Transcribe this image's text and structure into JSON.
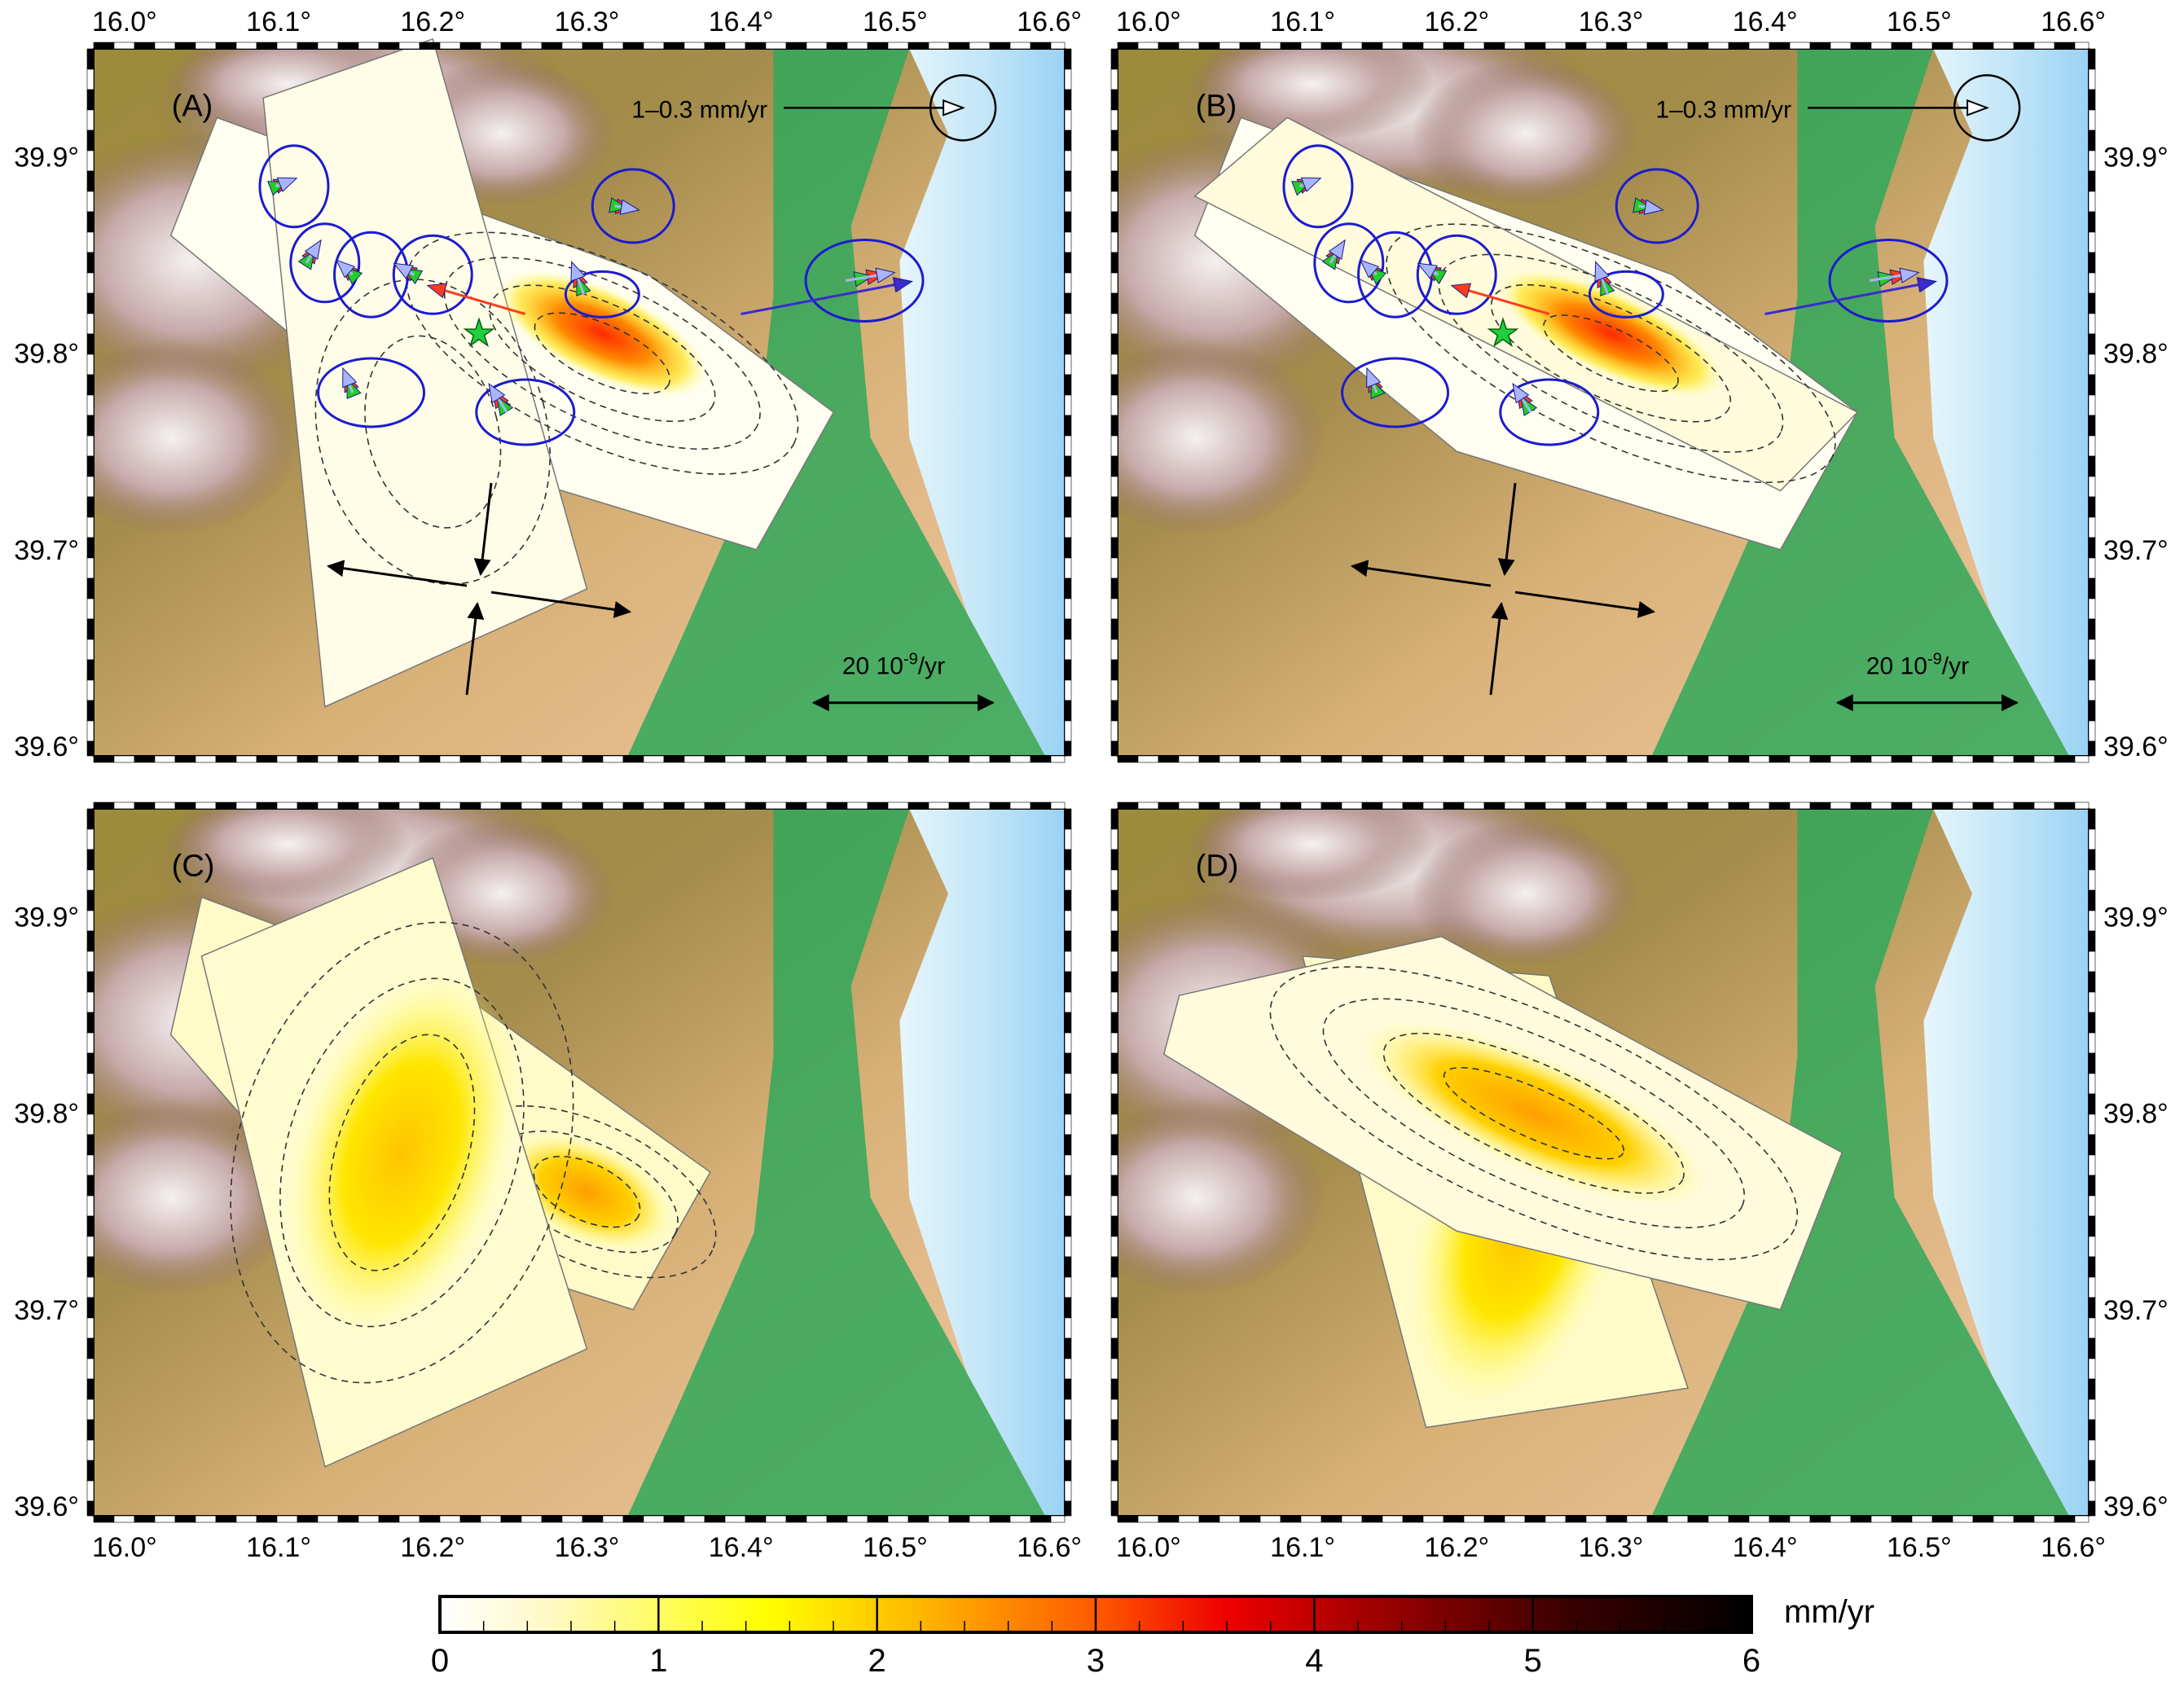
{
  "figure": {
    "lon_ticks": [
      "16.0°",
      "16.1°",
      "16.2°",
      "16.3°",
      "16.4°",
      "16.5°",
      "16.6°"
    ],
    "lon_values": [
      16.0,
      16.1,
      16.2,
      16.3,
      16.4,
      16.5,
      16.6
    ],
    "lat_ticks": [
      "39.6°",
      "39.7°",
      "39.8°",
      "39.9°"
    ],
    "lat_values": [
      39.6,
      39.7,
      39.8,
      39.9
    ],
    "lon_range": [
      15.98,
      16.61
    ],
    "lat_range": [
      39.595,
      39.955
    ],
    "panels": [
      {
        "id": "A",
        "label": "(A)",
        "velocity_scale": "1–0.3 mm/yr",
        "strain_scale": "20 10-9/yr",
        "strain_scale_base": "20 10",
        "strain_scale_exp": "-9",
        "strain_scale_unit": "/yr",
        "epicenter": [
          16.23,
          39.81
        ]
      },
      {
        "id": "B",
        "label": "(B)",
        "velocity_scale": "1–0.3 mm/yr",
        "strain_scale": "20 10-9/yr",
        "strain_scale_base": "20 10",
        "strain_scale_exp": "-9",
        "strain_scale_unit": "/yr",
        "epicenter": [
          16.23,
          39.81
        ]
      },
      {
        "id": "C",
        "label": "(C)"
      },
      {
        "id": "D",
        "label": "(D)"
      }
    ],
    "colorbar": {
      "unit": "mm/yr",
      "ticks": [
        "0",
        "1",
        "2",
        "3",
        "4",
        "5",
        "6"
      ],
      "range": [
        0,
        6
      ],
      "colors": [
        "#ffffff",
        "#fff9c8",
        "#ffff00",
        "#ffbb00",
        "#ff5a00",
        "#ee0000",
        "#9a0000",
        "#3a0000",
        "#000000"
      ]
    },
    "colors": {
      "observed_vector": "#a9b4ff",
      "model_vector_red": "#ff3c1e",
      "model_vector_green": "#20d020",
      "error_ellipse": "#1b1bd0",
      "epicenter_star": "#1fcf3f",
      "lowland": "#2fa85a",
      "sea": "#a9d8f5",
      "mountain": "#a07878"
    }
  }
}
